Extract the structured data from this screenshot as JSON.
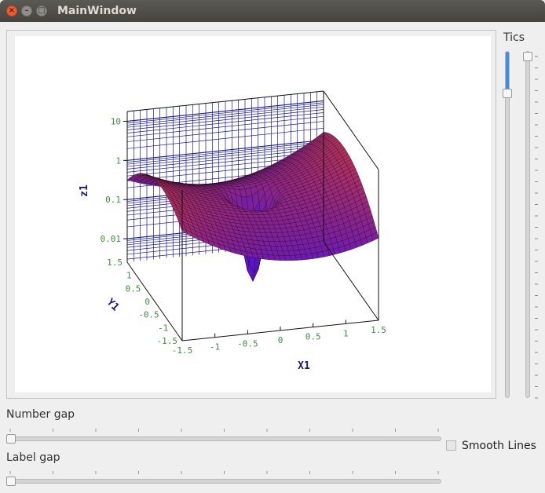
{
  "window": {
    "title": "MainWindow"
  },
  "controls": {
    "tics_label": "Tics",
    "number_gap_label": "Number gap",
    "label_gap_label": "Label gap",
    "smooth_lines_label": "Smooth Lines",
    "smooth_lines_checked": false,
    "number_gap_value": 0,
    "label_gap_value": 0,
    "tics_slider_a_value": 0.89,
    "tics_slider_b_value": 1.0
  },
  "chart_data": {
    "type": "surface",
    "xlabel": "X1",
    "ylabel": "Y1",
    "zlabel": "z1",
    "x_ticks": [
      "-1.5",
      "-1",
      "-0.5",
      "0",
      "0.5",
      "1",
      "1.5"
    ],
    "y_ticks": [
      "1.5",
      "1",
      "0.5",
      "0",
      "-0.5",
      "-1",
      "-1.5"
    ],
    "z_ticks": [
      "10",
      "1",
      "0.1",
      "0.01"
    ],
    "zscale": "log",
    "colors": {
      "axis_label": "#1a1a7a",
      "tick_label": "#3f8f3f",
      "grid": "#1a1a9a",
      "surface_high": "#c0392b",
      "surface_low": "#6a1fd0"
    }
  }
}
